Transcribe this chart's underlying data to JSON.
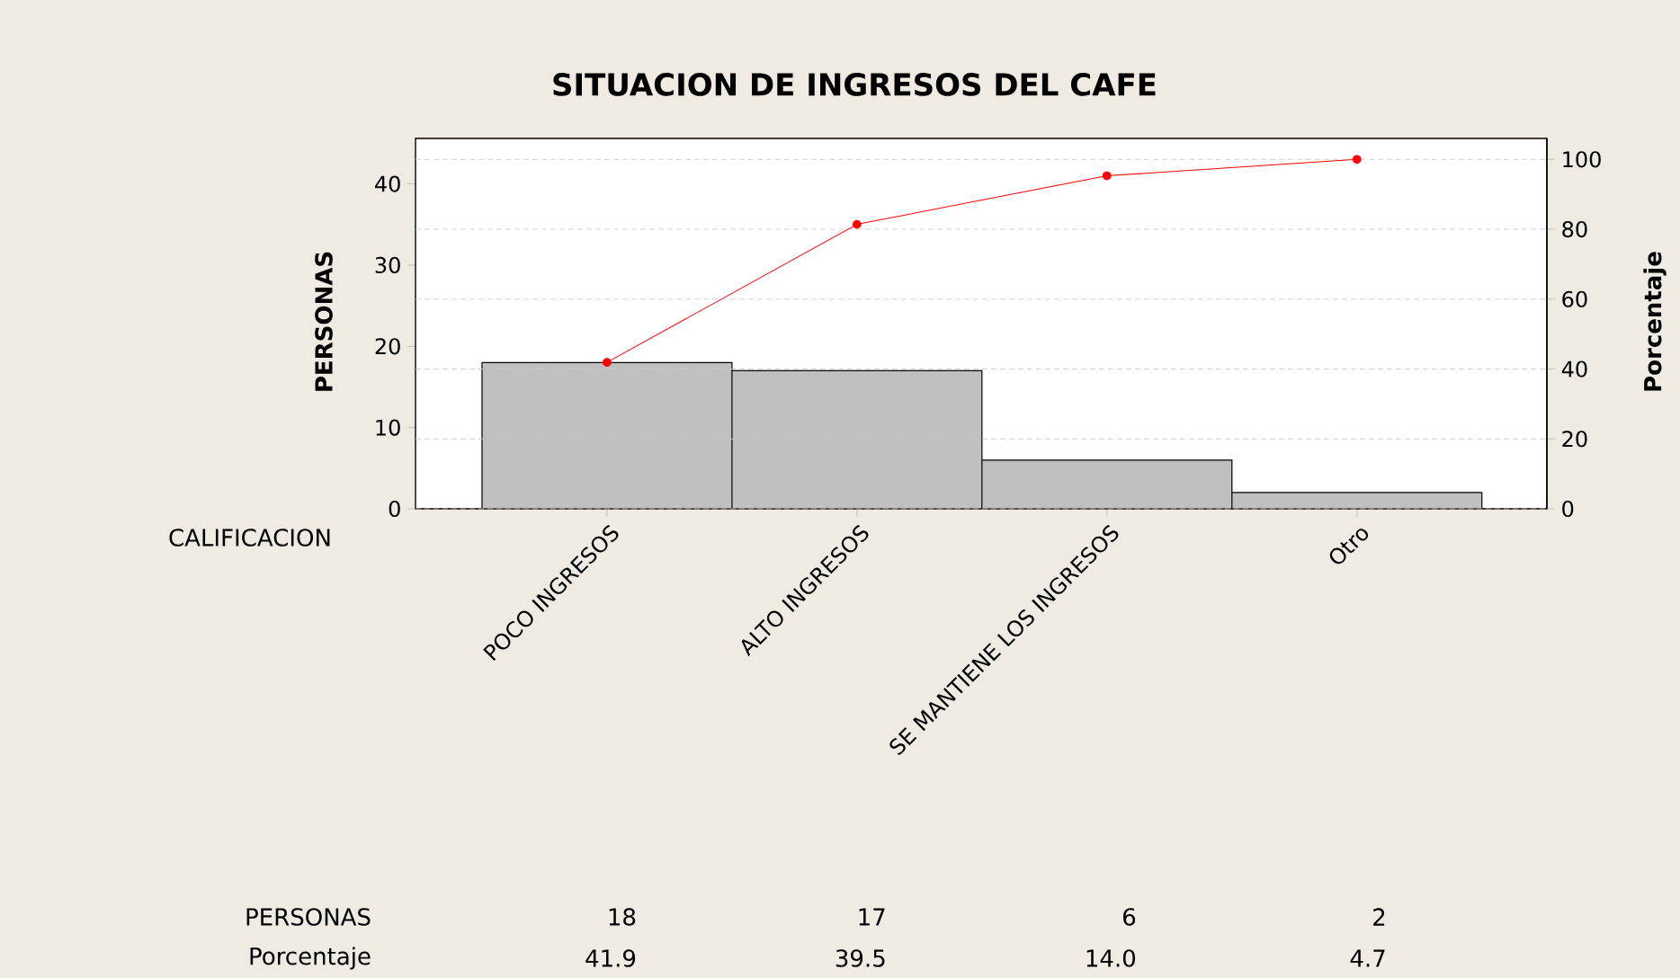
{
  "chart_data": {
    "type": "bar",
    "title": "SITUACION DE INGRESOS DEL CAFE",
    "xlabel": "CALIFICACION",
    "ylabel": "PERSONAS",
    "y2label": "Porcentaje",
    "categories": [
      "POCO INGRESOS",
      "ALTO INGRESOS",
      "SE MANTIENE LOS INGRESOS",
      "Otro"
    ],
    "series": [
      {
        "name": "PERSONAS",
        "color": "#c0c0c0",
        "values": [
          18,
          17,
          6,
          2
        ],
        "value_labels": [
          "18",
          "17",
          "6",
          "2"
        ]
      },
      {
        "type": "line",
        "axis": "y2",
        "color": "#ff0000",
        "values": [
          41.9,
          81.4,
          95.3,
          100
        ]
      }
    ],
    "ylim": [
      0,
      45.6
    ],
    "yticks": [
      0,
      10,
      20,
      30,
      40
    ],
    "y2lim": [
      0,
      106
    ],
    "y2ticks": [
      0,
      20,
      40,
      60,
      80,
      100
    ],
    "grid": true,
    "marker": "circle",
    "annotations": [
      "Porcentaje",
      "41.9",
      "39.5",
      "14.0",
      "4.7"
    ]
  }
}
